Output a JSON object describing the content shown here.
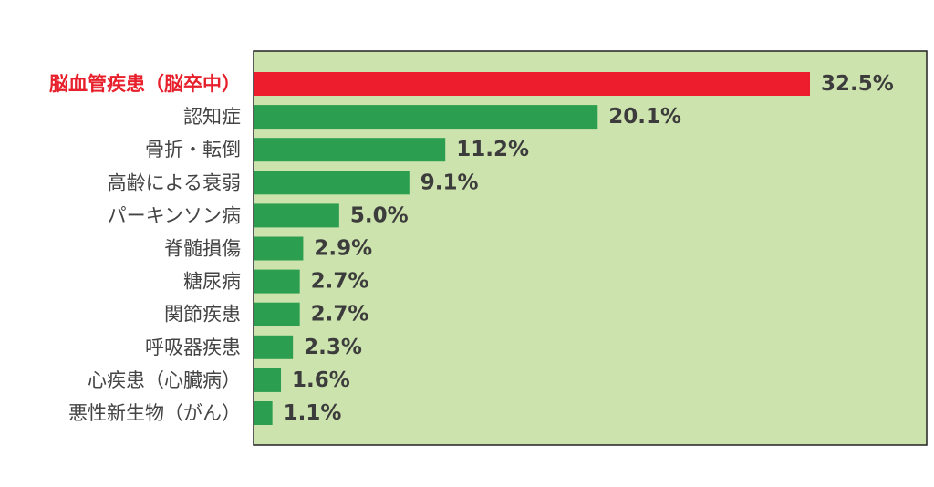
{
  "chart_data": {
    "type": "bar",
    "orientation": "horizontal",
    "categories": [
      "脳血管疾患（脳卒中）",
      "認知症",
      "骨折・転倒",
      "高齢による衰弱",
      "パーキンソン病",
      "脊髄損傷",
      "糖尿病",
      "関節疾患",
      "呼吸器疾患",
      "心疾患（心臓病）",
      "悪性新生物（がん）"
    ],
    "values": [
      32.5,
      20.1,
      11.2,
      9.1,
      5.0,
      2.9,
      2.7,
      2.7,
      2.3,
      1.6,
      1.1
    ],
    "value_labels": [
      "32.5%",
      "20.1%",
      "11.2%",
      "9.1%",
      "5.0%",
      "2.9%",
      "2.7%",
      "2.7%",
      "2.3%",
      "1.6%",
      "1.1%"
    ],
    "xlim": [
      0,
      40
    ],
    "highlight_index": 0,
    "colors": {
      "plot_background": "#cde3ad",
      "bar": "#2c9e4f",
      "bar_highlight": "#ee1d2e",
      "highlight_label": "#e8202c",
      "label": "#444444",
      "border": "#222222"
    },
    "grid": false,
    "legend": "none"
  }
}
